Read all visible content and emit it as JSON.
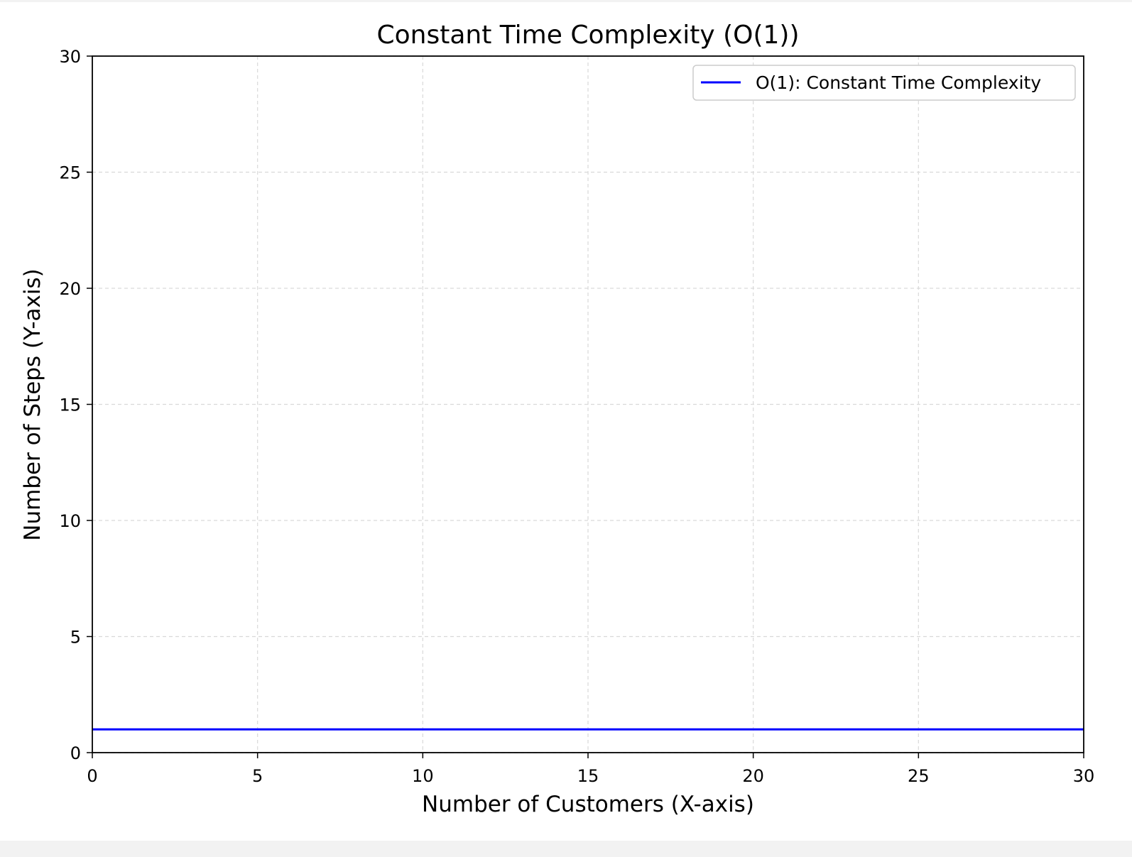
{
  "chart_data": {
    "type": "line",
    "title": "Constant Time Complexity (O(1))",
    "xlabel": "Number of Customers (X-axis)",
    "ylabel": "Number of Steps (Y-axis)",
    "xlim": [
      0,
      30
    ],
    "ylim": [
      0,
      30
    ],
    "xticks": [
      0,
      5,
      10,
      15,
      20,
      25,
      30
    ],
    "yticks": [
      0,
      5,
      10,
      15,
      20,
      25,
      30
    ],
    "grid": true,
    "grid_style": "dashed",
    "legend_position": "top-right",
    "series": [
      {
        "name": "O(1): Constant Time Complexity",
        "color": "#0000ff",
        "x": [
          0,
          30
        ],
        "y": [
          1,
          1
        ]
      }
    ]
  }
}
